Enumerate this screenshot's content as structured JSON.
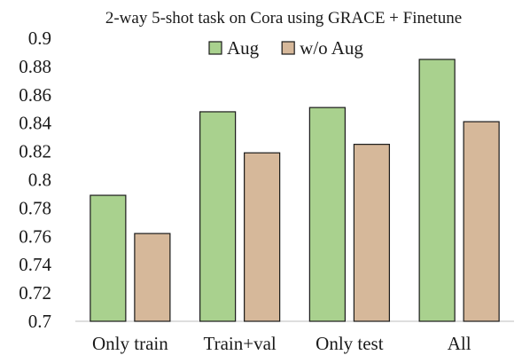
{
  "chart_data": {
    "type": "bar",
    "title": "2-way 5-shot task on Cora using GRACE + Finetune",
    "categories": [
      "Only train",
      "Train+val",
      "Only test",
      "All"
    ],
    "series": [
      {
        "name": "Aug",
        "values": [
          0.789,
          0.848,
          0.851,
          0.885
        ],
        "color": "#a9d18e"
      },
      {
        "name": "w/o Aug",
        "values": [
          0.762,
          0.819,
          0.825,
          0.841
        ],
        "color": "#d6b89a"
      }
    ],
    "y_ticks": [
      "0.7",
      "0.72",
      "0.74",
      "0.76",
      "0.78",
      "0.8",
      "0.82",
      "0.84",
      "0.86",
      "0.88",
      "0.9"
    ],
    "ylim": [
      0.7,
      0.9
    ],
    "xlabel": "",
    "ylabel": "",
    "grid": false,
    "legend_position": "top-center"
  }
}
